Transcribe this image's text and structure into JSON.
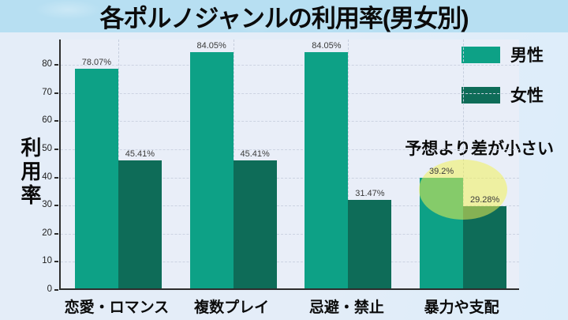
{
  "title_bar": {
    "title": "各ポルノジャンルの利用率(男女別)"
  },
  "colors": {
    "banner_bg": "#b7dff2",
    "outer_bg": "#e3edf9",
    "plot_bg": "#e9eef8",
    "axis": "#2d2d2d",
    "gridline": "#ccd3e2",
    "male_bar": "#0da186",
    "female_bar": "#0e6c58",
    "highlight": "#f4f250",
    "value_label_text": "#3a3a3a"
  },
  "chart_data": {
    "type": "bar",
    "title": "各ポルノジャンルの利用率(男女別)",
    "categories": [
      "恋愛・ロマンス",
      "複数プレイ",
      "忌避・禁止",
      "暴力や支配"
    ],
    "series": [
      {
        "name": "男性",
        "color": "#0da186",
        "values": [
          78.07,
          84.05,
          84.05,
          39.2
        ],
        "labels": [
          "78.07%",
          "84.05%",
          "84.05%",
          "39.2%"
        ]
      },
      {
        "name": "女性",
        "color": "#0e6c58",
        "values": [
          45.41,
          45.41,
          31.47,
          29.28
        ],
        "labels": [
          "45.41%",
          "45.41%",
          "31.47%",
          "29.28%"
        ]
      }
    ],
    "ylabel": "利用率",
    "xlabel": "",
    "yticks": [
      0,
      10,
      20,
      30,
      40,
      50,
      60,
      70,
      80
    ],
    "ylim": [
      0,
      89
    ],
    "grid": true,
    "legend_position": "top-right"
  },
  "annotation": {
    "text": "予想より差が小さい",
    "target_category": "暴力や支配",
    "highlighted_values": [
      "39.2%",
      "29.28%"
    ]
  }
}
